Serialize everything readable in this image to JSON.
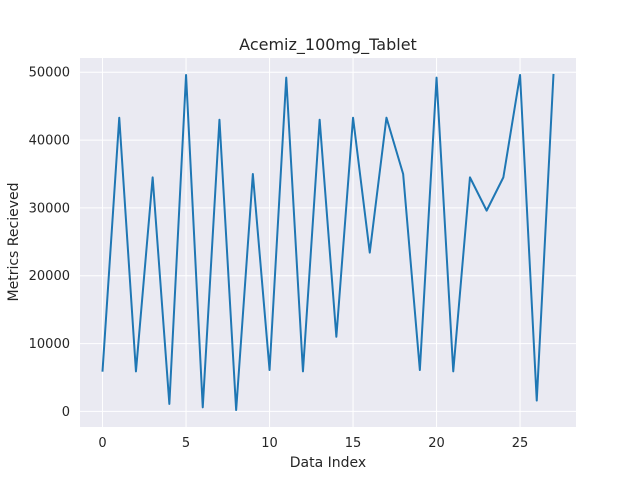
{
  "chart_data": {
    "type": "line",
    "title": "Acemiz_100mg_Tablet",
    "xlabel": "Data Index",
    "ylabel": "Metrics Recieved",
    "xlim": [
      -1.35,
      28.35
    ],
    "ylim": [
      -2300,
      52100
    ],
    "x_ticks": [
      0,
      5,
      10,
      15,
      20,
      25
    ],
    "x_tick_labels": [
      "0",
      "5",
      "10",
      "15",
      "20",
      "25"
    ],
    "y_ticks": [
      0,
      10000,
      20000,
      30000,
      40000,
      50000
    ],
    "y_tick_labels": [
      "0",
      "10000",
      "20000",
      "30000",
      "40000",
      "50000"
    ],
    "grid": true,
    "background": "#eaeaf2",
    "grid_color": "#ffffff",
    "line_color": "#1f77b4",
    "series": [
      {
        "x": [
          0,
          1,
          2,
          3,
          4,
          5,
          6,
          7,
          8,
          9,
          10,
          11,
          12,
          13,
          14,
          15,
          16,
          17,
          18,
          19,
          20,
          21,
          22,
          23,
          24,
          25,
          26,
          27
        ],
        "values": [
          6000,
          43300,
          5900,
          34500,
          1100,
          49600,
          600,
          43000,
          200,
          35000,
          6100,
          49200,
          5900,
          43000,
          11000,
          43300,
          23400,
          43300,
          35000,
          6100,
          49200,
          5900,
          34500,
          29600,
          34500,
          49600,
          1600,
          49600
        ]
      }
    ]
  }
}
